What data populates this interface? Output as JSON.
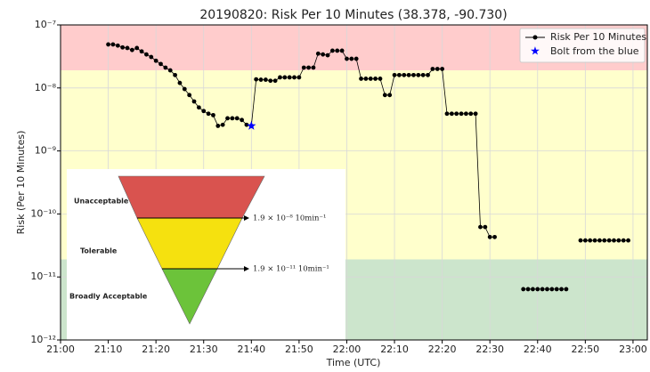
{
  "chart_data": {
    "type": "line",
    "title": "20190820: Risk Per 10 Minutes (38.378, -90.730)",
    "xlabel": "Time (UTC)",
    "ylabel": "Risk (Per 10 Minutes)",
    "yscale": "log",
    "grid": true,
    "legend": "upper right",
    "xlim": [
      "21:00",
      "23:03"
    ],
    "ylim": [
      1e-12,
      1e-07
    ],
    "xticks": [
      "21:00",
      "21:10",
      "21:20",
      "21:30",
      "21:40",
      "21:50",
      "22:00",
      "22:10",
      "22:20",
      "22:30",
      "22:40",
      "22:50",
      "23:00"
    ],
    "yticks": [
      {
        "value": 1e-12,
        "label": "10⁻¹²"
      },
      {
        "value": 1e-11,
        "label": "10⁻¹¹"
      },
      {
        "value": 1e-10,
        "label": "10⁻¹⁰"
      },
      {
        "value": 1e-09,
        "label": "10⁻⁹"
      },
      {
        "value": 1e-08,
        "label": "10⁻⁸"
      },
      {
        "value": 1e-07,
        "label": "10⁻⁷"
      }
    ],
    "bands": [
      {
        "from": 1.9e-08,
        "to": 1e-07,
        "color": "#ffcccc"
      },
      {
        "from": 1.9e-11,
        "to": 1.9e-08,
        "color": "#ffffcc"
      },
      {
        "from": 1e-12,
        "to": 1.9e-11,
        "color": "#cce5cc"
      }
    ],
    "series": [
      {
        "name": "Risk Per 10 Minutes",
        "color": "#000000",
        "marker": "circle",
        "x": [
          "21:10",
          "21:11",
          "21:12",
          "21:13",
          "21:14",
          "21:15",
          "21:16",
          "21:17",
          "21:18",
          "21:19",
          "21:20",
          "21:21",
          "21:22",
          "21:23",
          "21:24",
          "21:25",
          "21:26",
          "21:27",
          "21:28",
          "21:29",
          "21:30",
          "21:31",
          "21:32",
          "21:33",
          "21:34",
          "21:35",
          "21:36",
          "21:37",
          "21:38",
          "21:39",
          "21:40",
          "21:41",
          "21:42",
          "21:43",
          "21:44",
          "21:45",
          "21:46",
          "21:47",
          "21:48",
          "21:49",
          "21:50",
          "21:51",
          "21:52",
          "21:53",
          "21:54",
          "21:55",
          "21:56",
          "21:57",
          "21:58",
          "21:59",
          "22:00",
          "22:01",
          "22:02",
          "22:03",
          "22:04",
          "22:05",
          "22:06",
          "22:07",
          "22:08",
          "22:09",
          "22:10",
          "22:11",
          "22:12",
          "22:13",
          "22:14",
          "22:15",
          "22:16",
          "22:17",
          "22:18",
          "22:19",
          "22:20",
          "22:21",
          "22:22",
          "22:23",
          "22:24",
          "22:25",
          "22:26",
          "22:27",
          "22:28",
          "22:29",
          "22:30",
          "22:31",
          "22:34",
          "22:37",
          "22:38",
          "22:39",
          "22:40",
          "22:41",
          "22:42",
          "22:43",
          "22:44",
          "22:45",
          "22:46",
          "22:47",
          "22:49",
          "22:50",
          "22:51",
          "22:52",
          "22:53",
          "22:54",
          "22:55",
          "22:56",
          "22:57",
          "22:58",
          "22:59"
        ],
        "values": [
          4.9e-08,
          4.9e-08,
          4.7e-08,
          4.4e-08,
          4.3e-08,
          4e-08,
          4.3e-08,
          3.8e-08,
          3.4e-08,
          3.1e-08,
          2.7e-08,
          2.4e-08,
          2.1e-08,
          1.9e-08,
          1.6e-08,
          1.2e-08,
          9.6e-09,
          7.7e-09,
          6.1e-09,
          4.9e-09,
          4.3e-09,
          3.9e-09,
          3.7e-09,
          2.5e-09,
          2.6e-09,
          3.3e-09,
          3.3e-09,
          3.3e-09,
          3.1e-09,
          2.6e-09,
          2.5e-09,
          1.37e-08,
          1.35e-08,
          1.35e-08,
          1.3e-08,
          1.3e-08,
          1.47e-08,
          1.47e-08,
          1.47e-08,
          1.47e-08,
          1.47e-08,
          2.1e-08,
          2.1e-08,
          2.1e-08,
          3.5e-08,
          3.4e-08,
          3.3e-08,
          3.9e-08,
          3.9e-08,
          3.9e-08,
          2.9e-08,
          2.9e-08,
          2.9e-08,
          1.4e-08,
          1.4e-08,
          1.4e-08,
          1.4e-08,
          1.4e-08,
          7.7e-09,
          7.7e-09,
          1.6e-08,
          1.6e-08,
          1.6e-08,
          1.6e-08,
          1.6e-08,
          1.6e-08,
          1.6e-08,
          1.6e-08,
          2e-08,
          2e-08,
          2e-08,
          3.9e-09,
          3.9e-09,
          3.9e-09,
          3.9e-09,
          3.9e-09,
          3.9e-09,
          3.9e-09,
          6.2e-11,
          6.2e-11,
          4.3e-11,
          4.3e-11,
          null,
          6.4e-12,
          6.4e-12,
          6.4e-12,
          6.4e-12,
          6.4e-12,
          6.4e-12,
          6.4e-12,
          6.4e-12,
          6.4e-12,
          6.4e-12,
          null,
          3.8e-11,
          3.8e-11,
          3.8e-11,
          3.8e-11,
          3.8e-11,
          3.8e-11,
          3.8e-11,
          3.8e-11,
          3.8e-11,
          3.8e-11,
          3.8e-11
        ]
      },
      {
        "name": "Bolt from the blue",
        "color": "#0000ff",
        "marker": "star",
        "x": [
          "21:40"
        ],
        "values": [
          2.5e-09
        ]
      }
    ],
    "inset": {
      "levels": [
        {
          "label": "Unacceptable",
          "color": "#d9534f"
        },
        {
          "label": "Tolerable",
          "color": "#f5e10f"
        },
        {
          "label": "Broadly Acceptable",
          "color": "#6cc33a"
        }
      ],
      "thresholds": [
        "1.9 × 10⁻⁸ 10min⁻¹",
        "1.9 × 10⁻¹¹ 10min⁻¹"
      ]
    }
  }
}
